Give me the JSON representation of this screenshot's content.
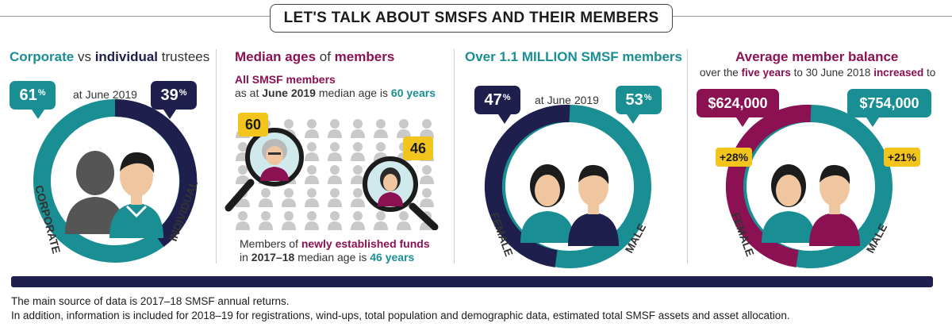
{
  "header": {
    "title": "LET'S TALK ABOUT SMSFS AND THEIR MEMBERS"
  },
  "colors": {
    "teal": "#1a8f93",
    "navy": "#1f1f4e",
    "plum": "#8b1152",
    "yellow": "#f2c41c"
  },
  "trustees": {
    "heading": {
      "part1": "Corporate",
      "part2": " vs ",
      "part3": "individual",
      "part4": " trustees"
    },
    "date": "at June 2019",
    "corporate_pct": "61",
    "individual_pct": "39",
    "pct_sign": "%",
    "corporate_label": "CORPORATE",
    "individual_label": "INDIVIDUAL",
    "icons": [
      "corporate-silhouette-icon",
      "individual-person-icon"
    ]
  },
  "ages": {
    "heading": {
      "part1": "Median ages",
      "part2": " of ",
      "part3": "members"
    },
    "all_members_title": "All SMSF members",
    "line2": {
      "part1": "as at ",
      "part2": "June 2019",
      "part3": " median age is ",
      "part4": "60 years"
    },
    "age_all": "60",
    "age_new": "46",
    "new_funds": {
      "part1": "Members of ",
      "part2": "newly established funds"
    },
    "new_funds_line2": {
      "part1": "in ",
      "part2": "2017–18",
      "part3": " median age is ",
      "part4": "46 years"
    },
    "icons": [
      "magnifier-icon",
      "older-woman-icon",
      "younger-woman-icon",
      "people-grid-icon"
    ]
  },
  "members": {
    "heading": {
      "part1": "Over ",
      "part2": "1.1 MILLION",
      "part3": " SMSF members"
    },
    "date": "at June 2019",
    "female_pct": "47",
    "male_pct": "53",
    "pct_sign": "%",
    "female_label": "FEMALE",
    "male_label": "MALE",
    "icons": [
      "woman-icon",
      "man-icon"
    ]
  },
  "balance": {
    "heading": "Average member balance",
    "subheading": {
      "part1": "over the ",
      "part2": "five years",
      "part3": " to 30 June 2018 ",
      "part4": "increased",
      "part5": " to"
    },
    "female_balance": "$624,000",
    "male_balance": "$754,000",
    "female_growth": "+28%",
    "male_growth": "+21%",
    "female_label": "FEMALE",
    "male_label": "MALE",
    "icons": [
      "woman-icon",
      "man-icon"
    ]
  },
  "footer": {
    "line1": "The main source of data is 2017–18 SMSF annual returns.",
    "line2": "In addition, information is included for 2018–19 for registrations, wind-ups, total population and demographic data, estimated total SMSF assets and asset allocation."
  }
}
